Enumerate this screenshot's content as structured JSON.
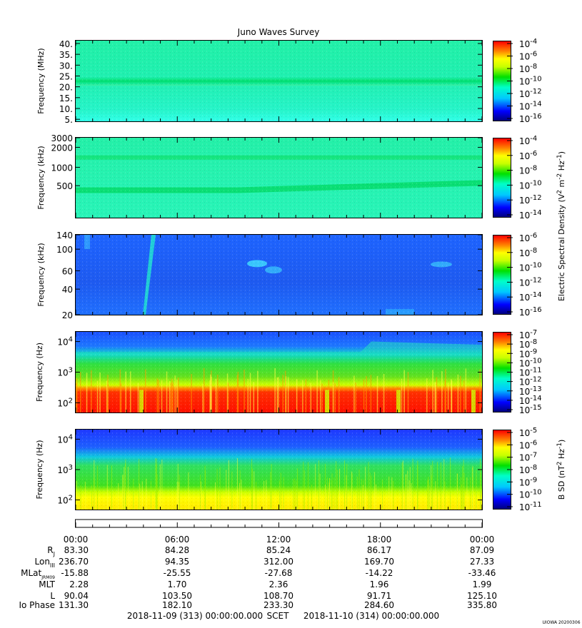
{
  "title": "Juno Waves Survey",
  "footer": {
    "start": "2018-11-09 (313) 00:00:00.000",
    "frame": "SCET",
    "end": "2018-11-10 (314) 00:00:00.000",
    "credit": "UIOWA 20200306"
  },
  "colors": {
    "low": "#0000c0",
    "cyan": "#00ffff",
    "green": "#00e000",
    "yellow": "#ffff00",
    "high": "#ff0000"
  },
  "chart_data": [
    {
      "type": "heatmap",
      "panel": 1,
      "ylabel": "Frequency (MHz)",
      "yticks": [
        "40.",
        "35.",
        "30.",
        "25.",
        "20.",
        "15.",
        "10.",
        "5."
      ],
      "cbar_ticks": [
        "-4",
        "-6",
        "-8",
        "-10",
        "-12",
        "-14",
        "-16"
      ],
      "cbar_base": "10",
      "background_level": "cyan-green",
      "features": [
        "green band near 22 MHz"
      ]
    },
    {
      "type": "heatmap",
      "panel": 2,
      "ylabel": "Frequency (kHz)",
      "yticks": [
        "3000",
        "2000",
        "1000",
        "500"
      ],
      "cbar_ticks": [
        "-4",
        "-6",
        "-8",
        "-10",
        "-12",
        "-14"
      ],
      "cbar_base": "10",
      "background_level": "cyan-green",
      "features": [
        "band near 1500 kHz",
        "band rising from ~450 to ~600 kHz"
      ]
    },
    {
      "type": "heatmap",
      "panel": 3,
      "ylabel": "Frequency (kHz)",
      "yticks": [
        "140",
        "100",
        "60",
        "40",
        "20"
      ],
      "cbar_ticks": [
        "-6",
        "-8",
        "-10",
        "-12",
        "-14",
        "-16"
      ],
      "cbar_base": "10",
      "background_level": "blue",
      "features": [
        "emission streak near 04:00",
        "patches near 60-70 kHz"
      ]
    },
    {
      "type": "heatmap",
      "panel": 4,
      "ylabel": "Frequency (Hz)",
      "yticks": [
        "10^4",
        "10^3",
        "10^2"
      ],
      "cbar_ticks": [
        "-7",
        "-8",
        "-9",
        "-10",
        "-11",
        "-12",
        "-13",
        "-14",
        "-15"
      ],
      "cbar_base": "10",
      "features": [
        "intense red band below ~300 Hz",
        "green/yellow to ~3 kHz",
        "blue above"
      ]
    },
    {
      "type": "heatmap",
      "panel": 5,
      "ylabel": "Frequency (Hz)",
      "yticks": [
        "10^4",
        "10^3",
        "10^2"
      ],
      "cbar_ticks": [
        "-5",
        "-6",
        "-7",
        "-8",
        "-9",
        "-10",
        "-11"
      ],
      "cbar_base": "10",
      "features": [
        "yellow band below ~200 Hz",
        "green to ~3 kHz",
        "blue above"
      ]
    }
  ],
  "cbar_label_E": "Electric Spectral Density (V",
  "cbar_label_B": "B SD (nT",
  "ephemeris": {
    "times": [
      "00:00",
      "06:00",
      "12:00",
      "18:00",
      "00:00"
    ],
    "rows": [
      {
        "label": "R",
        "sub": "J",
        "values": [
          "83.30",
          "84.28",
          "85.24",
          "86.17",
          "87.09"
        ]
      },
      {
        "label": "Lon",
        "sub": "III",
        "values": [
          "236.70",
          "94.35",
          "312.00",
          "169.70",
          "27.33"
        ]
      },
      {
        "label": "MLat",
        "sub": "JRM09",
        "values": [
          "-15.88",
          "-25.55",
          "-27.68",
          "-14.22",
          "-33.46"
        ]
      },
      {
        "label": "MLT",
        "sub": "",
        "values": [
          "2.28",
          "1.70",
          "2.36",
          "1.96",
          "1.99"
        ]
      },
      {
        "label": "L",
        "sub": "",
        "values": [
          "90.04",
          "103.50",
          "108.70",
          "91.71",
          "125.10"
        ]
      },
      {
        "label": "Io Phase",
        "sub": "",
        "values": [
          "131.30",
          "182.10",
          "233.30",
          "284.60",
          "335.80"
        ]
      }
    ]
  }
}
